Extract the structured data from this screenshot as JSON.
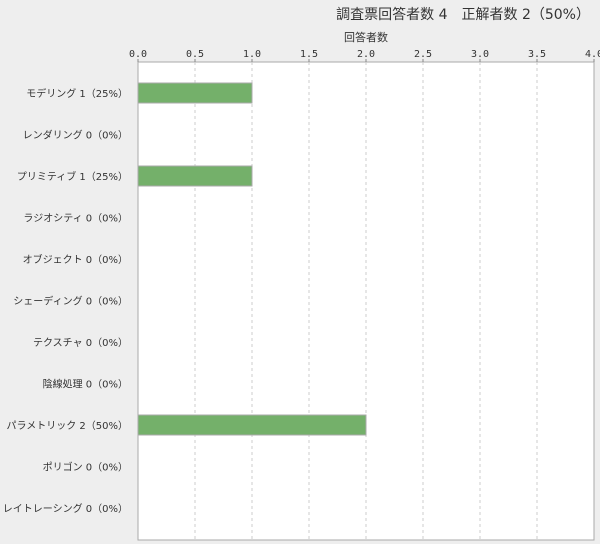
{
  "header": {
    "title": "調査票回答者数 4　正解者数 2（50%）"
  },
  "chart_data": {
    "type": "bar",
    "orientation": "horizontal",
    "title": "調査票回答者数 4　正解者数 2（50%）",
    "xlabel": "回答者数",
    "xlim": [
      0,
      4
    ],
    "ticks": [
      "0.0",
      "0.5",
      "1.0",
      "1.5",
      "2.0",
      "2.5",
      "3.0",
      "3.5",
      "4.0"
    ],
    "grid": true,
    "bar_color": "#74b06a",
    "categories": [
      "モデリング 1（25%）",
      "レンダリング 0（0%）",
      "プリミティブ 1（25%）",
      "ラジオシティ 0（0%）",
      "オブジェクト 0（0%）",
      "シェーディング 0（0%）",
      "テクスチャ 0（0%）",
      "陰線処理 0（0%）",
      "パラメトリック 2（50%）",
      "ポリゴン 0（0%）",
      "レイトレーシング 0（0%）"
    ],
    "values": [
      1,
      0,
      1,
      0,
      0,
      0,
      0,
      0,
      2,
      0,
      0
    ]
  }
}
